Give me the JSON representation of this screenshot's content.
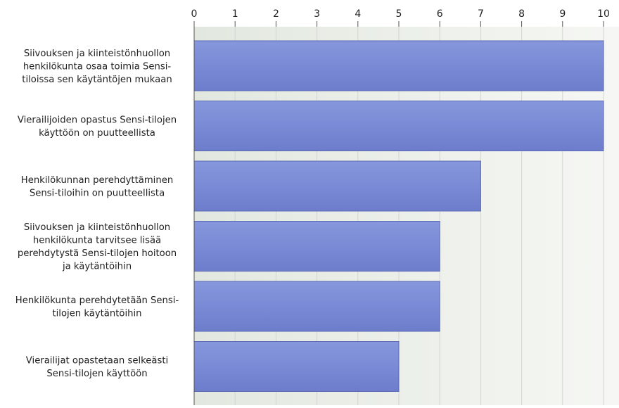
{
  "chart_data": {
    "type": "bar",
    "orientation": "horizontal",
    "categories": [
      "Siivouksen ja kiinteistönhuollon henkilökunta osaa toimia Sensi-tiloissa sen käytäntöjen mukaan",
      "Vierailijoiden opastus Sensi-tilojen käyttöön on puutteellista",
      "Henkilökunnan perehdyttäminen Sensi-tiloihin on puutteellista",
      "Siivouksen ja kiinteistönhuollon henkilökunta tarvitsee lisää perehdytystä Sensi-tilojen hoitoon ja käytäntöihin",
      "Henkilökunta perehdytetään Sensi-tilojen käytäntöihin",
      "Vierailijat opastetaan selkeästi Sensi-tilojen käyttöön"
    ],
    "category_label_lines": [
      [
        "Siivouksen ja kiinteistönhuollon",
        "henkilökunta osaa toimia Sensi-",
        "tiloissa sen käytäntöjen mukaan"
      ],
      [
        "Vierailijoiden opastus Sensi-tilojen",
        "käyttöön on puutteellista"
      ],
      [
        "Henkilökunnan perehdyttäminen",
        "Sensi-tiloihin on puutteellista"
      ],
      [
        "Siivouksen ja kiinteistönhuollon",
        "henkilökunta tarvitsee lisää",
        "perehdytystä Sensi-tilojen hoitoon",
        "ja käytäntöihin"
      ],
      [
        "Henkilökunta perehdytetään Sensi-",
        "tilojen käytäntöihin"
      ],
      [
        "Vierailijat opastetaan selkeästi",
        "Sensi-tilojen käyttöön"
      ]
    ],
    "values": [
      10,
      10,
      7,
      6,
      6,
      5
    ],
    "xlim": [
      0,
      10
    ],
    "x_ticks": [
      "0",
      "1",
      "2",
      "3",
      "4",
      "5",
      "6",
      "7",
      "8",
      "9",
      "10"
    ],
    "x_axis_position": "top",
    "grid": true,
    "legend": "none",
    "colors": {
      "bar_top": "#8797dd",
      "bar_bottom": "#6d7dcc",
      "bar_border": "#5a68b5",
      "plot_bg_left": "#e2e8df",
      "plot_bg_right": "#f6f7f4",
      "grid": "#d2d6d2",
      "axis": "#555555",
      "text": "#222222"
    }
  }
}
